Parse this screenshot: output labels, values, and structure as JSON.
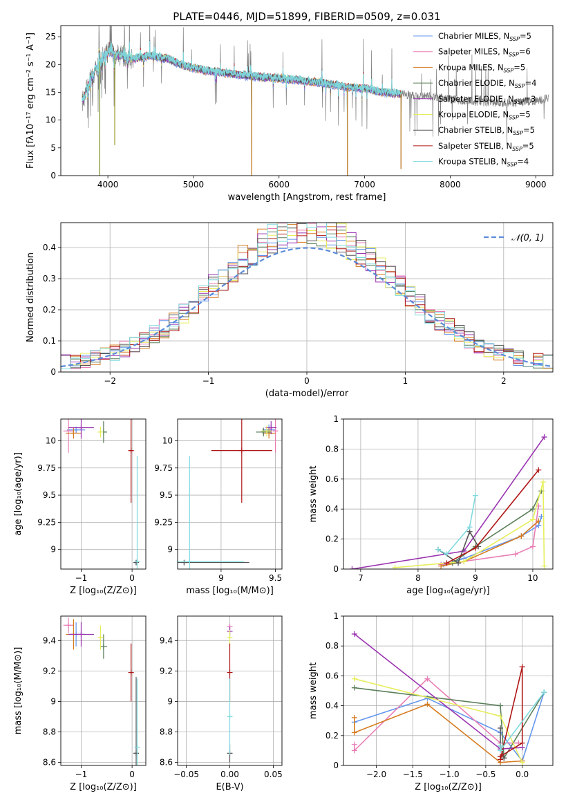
{
  "title": "PLATE=0446, MJD=51899, FIBERID=0509, z=0.031",
  "colors": [
    "#6495ED",
    "#E87DB5",
    "#D57A1E",
    "#5A7F5A",
    "#9A33B0",
    "#E6EE5C",
    "#555555",
    "#B01515",
    "#7FDADF"
  ],
  "chart_data": [
    {
      "id": "spectrum",
      "type": "line",
      "xlabel": "wavelength [Angstrom, rest frame]",
      "ylabel": "Flux [fλ10⁻¹⁷ erg cm⁻² s⁻¹ A⁻¹]",
      "xlim": [
        3450,
        9200
      ],
      "ylim": [
        0,
        27
      ],
      "xticks": [
        4000,
        5000,
        6000,
        7000,
        8000,
        9000
      ],
      "yticks": [
        0,
        5,
        10,
        15,
        20,
        25
      ],
      "legend_position": "top-right",
      "series": [
        {
          "name": "Chabrier MILES, N",
          "sub": "SSP",
          "suffix": "=5"
        },
        {
          "name": "Salpeter MILES, N",
          "sub": "SSP",
          "suffix": "=6"
        },
        {
          "name": "Kroupa MILES, N",
          "sub": "SSP",
          "suffix": "=5"
        },
        {
          "name": "Chabrier ELODIE, N",
          "sub": "SSP",
          "suffix": "=4"
        },
        {
          "name": "Salpeter ELODIE, N",
          "sub": "SSP",
          "suffix": "=3"
        },
        {
          "name": "Kroupa ELODIE, N",
          "sub": "SSP",
          "suffix": "=5"
        },
        {
          "name": "Chabrier STELIB, N",
          "sub": "SSP",
          "suffix": "=5"
        },
        {
          "name": "Salpeter STELIB, N",
          "sub": "SSP",
          "suffix": "=5"
        },
        {
          "name": "Kroupa STELIB, N",
          "sub": "SSP",
          "suffix": "=4"
        }
      ],
      "continuum": [
        [
          3700,
          13.0
        ],
        [
          3800,
          17.5
        ],
        [
          3900,
          20.5
        ],
        [
          4000,
          22.3
        ],
        [
          4100,
          21.8
        ],
        [
          4300,
          21.0
        ],
        [
          4500,
          21.6
        ],
        [
          4700,
          21.0
        ],
        [
          4900,
          19.7
        ],
        [
          5100,
          19.0
        ],
        [
          5300,
          18.6
        ],
        [
          5600,
          18.0
        ],
        [
          5900,
          17.6
        ],
        [
          6200,
          17.2
        ],
        [
          6500,
          16.7
        ],
        [
          6800,
          15.9
        ],
        [
          7000,
          15.7
        ],
        [
          7200,
          15.0
        ],
        [
          7500,
          14.6
        ],
        [
          7800,
          14.2
        ],
        [
          8100,
          13.6
        ],
        [
          8400,
          13.2
        ],
        [
          8700,
          13.1
        ],
        [
          9000,
          13.4
        ],
        [
          9150,
          14.0
        ]
      ],
      "model_range": [
        3700,
        7440
      ],
      "data_range": [
        3700,
        9150
      ],
      "deep_features": [
        [
          3905,
          0.0
        ],
        [
          4080,
          5.5
        ],
        [
          5680,
          0.0
        ],
        [
          6800,
          0.0
        ],
        [
          7425,
          1.2
        ]
      ]
    },
    {
      "id": "residuals",
      "type": "histogram",
      "xlabel": "(data-model)/error",
      "ylabel": "Normed distribution",
      "xlim": [
        -2.5,
        2.5
      ],
      "ylim": [
        0,
        0.48
      ],
      "xticks": [
        -2,
        -1,
        0,
        1,
        2
      ],
      "yticks": [
        0.0,
        0.1,
        0.2,
        0.3,
        0.4
      ],
      "legend": "𝒩(0, 1)",
      "legend_position": "top-right",
      "bins": 50,
      "gaussian": {
        "mu": 0,
        "sigma": 1
      }
    },
    {
      "id": "age-Z",
      "type": "scatter",
      "xlabel": "Z [log₁₀(Z/Z⊙)]",
      "ylabel": "age  [log₁₀(age/yr)]",
      "xlim": [
        -1.4,
        0.27
      ],
      "ylim": [
        8.82,
        10.2
      ],
      "xticks": [
        -1,
        0
      ],
      "yticks": [
        9.0,
        9.25,
        9.5,
        9.75,
        10.0
      ],
      "points": [
        {
          "c": 0,
          "x": -1.1,
          "y": 10.1,
          "xe": 0.18,
          "ye": 0.03
        },
        {
          "c": 1,
          "x": -1.25,
          "y": 10.09,
          "xe": 0.1,
          "ye": 0.2
        },
        {
          "c": 2,
          "x": -1.15,
          "y": 10.07,
          "xe": 0.15,
          "ye": 0.05
        },
        {
          "c": 3,
          "x": -0.56,
          "y": 10.08,
          "xe": 0.07,
          "ye": 0.1
        },
        {
          "c": 4,
          "x": -1.0,
          "y": 10.12,
          "xe": 0.25,
          "ye": 0.1
        },
        {
          "c": 5,
          "x": -0.62,
          "y": 10.08,
          "xe": 0.05,
          "ye": 0.05
        },
        {
          "c": 6,
          "x": 0.08,
          "y": 8.88,
          "xe": 0.04,
          "ye": 0.02
        },
        {
          "c": 7,
          "x": -0.02,
          "y": 9.91,
          "xe": 0.05,
          "ye": 0.48
        },
        {
          "c": 8,
          "x": 0.1,
          "y": 8.89,
          "xe": 0.05,
          "ye": 0.97
        }
      ]
    },
    {
      "id": "age-mass",
      "type": "scatter",
      "xlabel": "mass [log₁₀(M/M⊙)]",
      "ylabel": "",
      "xlim": [
        8.6,
        9.56
      ],
      "ylim": [
        8.82,
        10.2
      ],
      "xticks": [
        9.0,
        9.5
      ],
      "yticks": [
        9.0,
        9.25,
        9.5,
        9.75,
        10.0
      ],
      "points": [
        {
          "c": 0,
          "x": 9.44,
          "y": 10.1,
          "xe": 0.06,
          "ye": 0.05
        },
        {
          "c": 1,
          "x": 9.5,
          "y": 10.09,
          "xe": 0.02,
          "ye": 0.2
        },
        {
          "c": 2,
          "x": 9.44,
          "y": 10.07,
          "xe": 0.06,
          "ye": 0.05
        },
        {
          "c": 3,
          "x": 9.39,
          "y": 10.08,
          "xe": 0.07,
          "ye": 0.04
        },
        {
          "c": 4,
          "x": 9.46,
          "y": 10.12,
          "xe": 0.05,
          "ye": 0.06
        },
        {
          "c": 5,
          "x": 9.42,
          "y": 10.09,
          "xe": 0.05,
          "ye": 0.05
        },
        {
          "c": 6,
          "x": 8.66,
          "y": 8.88,
          "xe": 0.6,
          "ye": 0.02
        },
        {
          "c": 7,
          "x": 9.19,
          "y": 9.91,
          "xe": 0.28,
          "ye": 0.48
        },
        {
          "c": 8,
          "x": 8.71,
          "y": 8.89,
          "xe": 0.5,
          "ye": 0.97
        }
      ]
    },
    {
      "id": "weight-age",
      "type": "line",
      "xlabel": "age  [log₁₀(age/yr)]",
      "ylabel": "mass weight",
      "xlim": [
        6.7,
        10.35
      ],
      "ylim": [
        0,
        1.0
      ],
      "xticks": [
        7,
        8,
        9,
        10
      ],
      "yticks": [
        0.0,
        0.2,
        0.4,
        0.6,
        0.8,
        1.0
      ],
      "series": [
        {
          "c": 0,
          "points": [
            [
              8.45,
              0.03
            ],
            [
              8.8,
              0.07
            ],
            [
              9.8,
              0.22
            ],
            [
              10.1,
              0.29
            ],
            [
              10.15,
              0.35
            ]
          ]
        },
        {
          "c": 1,
          "points": [
            [
              8.4,
              0.03
            ],
            [
              9.7,
              0.1
            ],
            [
              10.0,
              0.15
            ],
            [
              10.1,
              0.42
            ]
          ]
        },
        {
          "c": 2,
          "points": [
            [
              8.4,
              0.02
            ],
            [
              8.8,
              0.05
            ],
            [
              9.8,
              0.22
            ],
            [
              10.1,
              0.32
            ]
          ]
        },
        {
          "c": 3,
          "points": [
            [
              8.6,
              0.04
            ],
            [
              9.0,
              0.15
            ],
            [
              10.0,
              0.4
            ],
            [
              10.15,
              0.52
            ]
          ]
        },
        {
          "c": 4,
          "points": [
            [
              6.85,
              0.0
            ],
            [
              8.8,
              0.12
            ],
            [
              10.2,
              0.88
            ]
          ]
        },
        {
          "c": 5,
          "points": [
            [
              7.6,
              0.01
            ],
            [
              8.8,
              0.05
            ],
            [
              10.0,
              0.33
            ],
            [
              10.18,
              0.58
            ],
            [
              10.2,
              0.02
            ]
          ]
        },
        {
          "c": 6,
          "points": [
            [
              8.35,
              0.13
            ],
            [
              8.7,
              0.04
            ],
            [
              8.9,
              0.25
            ],
            [
              9.05,
              0.15
            ]
          ]
        },
        {
          "c": 7,
          "points": [
            [
              8.5,
              0.04
            ],
            [
              9.0,
              0.14
            ],
            [
              10.1,
              0.66
            ]
          ]
        },
        {
          "c": 8,
          "points": [
            [
              8.35,
              0.13
            ],
            [
              8.5,
              0.1
            ],
            [
              8.9,
              0.28
            ],
            [
              9.0,
              0.49
            ]
          ]
        }
      ]
    },
    {
      "id": "mass-Z",
      "type": "scatter",
      "xlabel": "Z [log₁₀(Z/Z⊙)]",
      "ylabel": "mass [log₁₀(M/M⊙)]",
      "xlim": [
        -1.4,
        0.27
      ],
      "ylim": [
        8.58,
        9.56
      ],
      "xticks": [
        -1,
        0
      ],
      "yticks": [
        8.6,
        8.8,
        9.0,
        9.2,
        9.4
      ],
      "points": [
        {
          "c": 0,
          "x": -1.1,
          "y": 9.44,
          "xe": 0.18,
          "ye": 0.08
        },
        {
          "c": 1,
          "x": -1.25,
          "y": 9.5,
          "xe": 0.1,
          "ye": 0.05
        },
        {
          "c": 2,
          "x": -1.15,
          "y": 9.44,
          "xe": 0.15,
          "ye": 0.1
        },
        {
          "c": 3,
          "x": -0.56,
          "y": 9.36,
          "xe": 0.07,
          "ye": 0.08
        },
        {
          "c": 4,
          "x": -1.0,
          "y": 9.44,
          "xe": 0.25,
          "ye": 0.08
        },
        {
          "c": 5,
          "x": -0.62,
          "y": 9.42,
          "xe": 0.05,
          "ye": 0.08
        },
        {
          "c": 6,
          "x": 0.08,
          "y": 8.66,
          "xe": 0.04,
          "ye": 0.5
        },
        {
          "c": 7,
          "x": -0.02,
          "y": 9.19,
          "xe": 0.05,
          "ye": 0.19
        },
        {
          "c": 8,
          "x": 0.1,
          "y": 8.7,
          "xe": 0.05,
          "ye": 0.45
        }
      ]
    },
    {
      "id": "mass-EBV",
      "type": "scatter",
      "xlabel": "E(B-V)",
      "ylabel": "",
      "xlim": [
        -0.06,
        0.06
      ],
      "ylim": [
        8.58,
        9.56
      ],
      "xticks": [
        -0.05,
        0.0,
        0.05
      ],
      "xticklabels": [
        "−0.05",
        "0.00",
        "0.05"
      ],
      "yticks": [
        8.6,
        8.8,
        9.0,
        9.2,
        9.4
      ],
      "points": [
        {
          "c": 1,
          "x": 0.0,
          "y": 9.49,
          "xe": 0.0,
          "ye": 0.02
        },
        {
          "c": 4,
          "x": 0.0,
          "y": 9.46,
          "xe": 0.0,
          "ye": 0.03
        },
        {
          "c": 5,
          "x": 0.0,
          "y": 9.42,
          "xe": 0.0,
          "ye": 0.05
        },
        {
          "c": 7,
          "x": 0.0,
          "y": 9.19,
          "xe": 0.0,
          "ye": 0.19
        },
        {
          "c": 6,
          "x": 0.0,
          "y": 8.66,
          "xe": 0.0,
          "ye": 0.06
        },
        {
          "c": 8,
          "x": 0.0,
          "y": 8.9,
          "xe": 0.0,
          "ye": 0.25
        }
      ]
    },
    {
      "id": "weight-Z",
      "type": "line",
      "xlabel": "Z [log₁₀(Z/Z⊙)]",
      "ylabel": "mass weight",
      "xlim": [
        -2.45,
        0.42
      ],
      "ylim": [
        0,
        1.0
      ],
      "xticks": [
        -2.0,
        -1.5,
        -1.0,
        -0.5,
        0.0
      ],
      "xticklabels": [
        "−2.0",
        "−1.5",
        "−1.0",
        "−0.5",
        "0.0"
      ],
      "yticks": [
        0.0,
        0.2,
        0.4,
        0.6,
        0.8,
        1.0
      ],
      "series": [
        {
          "c": 0,
          "points": [
            [
              -2.3,
              0.29
            ],
            [
              -1.3,
              0.45
            ],
            [
              -0.3,
              0.22
            ],
            [
              0.0,
              0.03
            ],
            [
              0.3,
              0.49
            ]
          ]
        },
        {
          "c": 1,
          "points": [
            [
              -2.3,
              0.14
            ],
            [
              -2.3,
              0.1
            ],
            [
              -1.3,
              0.58
            ],
            [
              -0.3,
              0.15
            ],
            [
              -0.05,
              0.15
            ]
          ]
        },
        {
          "c": 2,
          "points": [
            [
              -2.3,
              0.32
            ],
            [
              -2.3,
              0.22
            ],
            [
              -1.3,
              0.41
            ],
            [
              -0.3,
              0.02
            ],
            [
              0.0,
              0.03
            ]
          ]
        },
        {
          "c": 3,
          "points": [
            [
              -2.3,
              0.52
            ],
            [
              -0.3,
              0.4
            ],
            [
              -0.25,
              0.05
            ],
            [
              0.3,
              0.49
            ]
          ]
        },
        {
          "c": 4,
          "points": [
            [
              -2.3,
              0.88
            ],
            [
              -0.3,
              0.11
            ],
            [
              0.0,
              0.12
            ]
          ]
        },
        {
          "c": 5,
          "points": [
            [
              -2.3,
              0.58
            ],
            [
              -0.3,
              0.33
            ],
            [
              0.0,
              0.02
            ]
          ]
        },
        {
          "c": 6,
          "points": [
            [
              -0.3,
              0.25
            ],
            [
              -0.3,
              0.13
            ],
            [
              -0.25,
              0.05
            ]
          ]
        },
        {
          "c": 7,
          "points": [
            [
              -0.3,
              0.04
            ],
            [
              0.0,
              0.66
            ],
            [
              0.0,
              0.15
            ],
            [
              -0.3,
              0.06
            ]
          ]
        },
        {
          "c": 8,
          "points": [
            [
              -0.3,
              0.13
            ],
            [
              -0.3,
              0.1
            ],
            [
              0.3,
              0.49
            ]
          ]
        }
      ]
    }
  ]
}
